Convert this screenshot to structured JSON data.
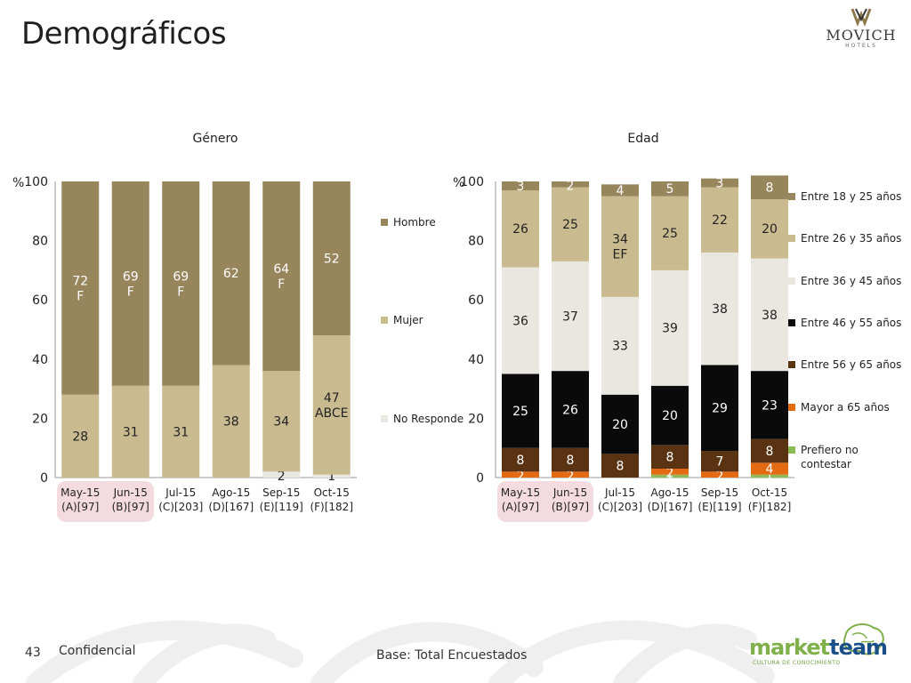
{
  "slide": {
    "title": "Demográficos",
    "page_number": "43",
    "confidential": "Confidencial",
    "base_note": "Base: Total Encuestados",
    "logo_top": {
      "name": "MOVICH",
      "sub": "HOTELS"
    },
    "logo_bottom": {
      "word_a": "market",
      "word_b": "team",
      "tagline": "CULTURA DE CONOCIMIENTO"
    }
  },
  "colors": {
    "hombre": "#97855c",
    "mujer": "#c9bb8f",
    "no_responde": "#eae7e1",
    "entre_18_25": "#97855c",
    "entre_26_35": "#c9bb8f",
    "entre_36_45": "#eae7e1",
    "entre_46_55": "#0a0a0a",
    "entre_56_65": "#5a3412",
    "mayor_65": "#e56a14",
    "prefiero_no": "#8dbb55",
    "highlight": "#f3dbe0"
  },
  "chart_data": [
    {
      "type": "bar",
      "stacked": true,
      "title": "Género",
      "ylabel": "%",
      "ylim": [
        0,
        100
      ],
      "yticks": [
        0,
        20,
        40,
        60,
        80,
        100
      ],
      "legend_position": "right",
      "categories": [
        [
          "May-15",
          "(A)[97]"
        ],
        [
          "Jun-15",
          "(B)[97]"
        ],
        [
          "Jul-15",
          "(C)[203]"
        ],
        [
          "Ago-15",
          "(D)[167]"
        ],
        [
          "Sep-15",
          "(E)[119]"
        ],
        [
          "Oct-15",
          "(F)[182]"
        ]
      ],
      "highlighted_categories": [
        0,
        1
      ],
      "series": [
        {
          "name": "No Responde",
          "color_key": "no_responde",
          "values": [
            0,
            0,
            0,
            0,
            2,
            1
          ],
          "labels": [
            "",
            "",
            "",
            "",
            "2",
            "1"
          ]
        },
        {
          "name": "Mujer",
          "color_key": "mujer",
          "values": [
            28,
            31,
            31,
            38,
            34,
            47
          ],
          "labels": [
            "28",
            "31",
            "31",
            "38",
            "34",
            "47\nABCE"
          ]
        },
        {
          "name": "Hombre",
          "color_key": "hombre",
          "values": [
            72,
            69,
            69,
            62,
            64,
            52
          ],
          "labels": [
            "72\nF",
            "69\nF",
            "69\nF",
            "62",
            "64\nF",
            "52"
          ]
        }
      ]
    },
    {
      "type": "bar",
      "stacked": true,
      "title": "Edad",
      "ylabel": "%",
      "ylim": [
        0,
        100
      ],
      "yticks": [
        0,
        20,
        40,
        60,
        80,
        100
      ],
      "legend_position": "right",
      "categories": [
        [
          "May-15",
          "(A)[97]"
        ],
        [
          "Jun-15",
          "(B)[97]"
        ],
        [
          "Jul-15",
          "(C)[203]"
        ],
        [
          "Ago-15",
          "(D)[167]"
        ],
        [
          "Sep-15",
          "(E)[119]"
        ],
        [
          "Oct-15",
          "(F)[182]"
        ]
      ],
      "highlighted_categories": [
        0,
        1
      ],
      "series": [
        {
          "name": "Prefiero no contestar",
          "color_key": "prefiero_no",
          "values": [
            0,
            0,
            0,
            1,
            0,
            1
          ],
          "labels": [
            "",
            "",
            "",
            "1",
            "",
            "1"
          ]
        },
        {
          "name": "Mayor a 65 años",
          "color_key": "mayor_65",
          "values": [
            2,
            2,
            0,
            2,
            2,
            4
          ],
          "labels": [
            "2",
            "2",
            "",
            "2",
            "2",
            "4"
          ]
        },
        {
          "name": "Entre 56 y 65 años",
          "color_key": "entre_56_65",
          "values": [
            8,
            8,
            8,
            8,
            7,
            8
          ],
          "labels": [
            "8",
            "8",
            "8",
            "8",
            "7",
            "8"
          ]
        },
        {
          "name": "Entre 46 y 55 años",
          "color_key": "entre_46_55",
          "values": [
            25,
            26,
            20,
            20,
            29,
            23
          ],
          "labels": [
            "25",
            "26",
            "20",
            "20",
            "29",
            "23"
          ]
        },
        {
          "name": "Entre 36 y 45 años",
          "color_key": "entre_36_45",
          "values": [
            36,
            37,
            33,
            39,
            38,
            38
          ],
          "labels": [
            "36",
            "37",
            "33",
            "39",
            "38",
            "38"
          ]
        },
        {
          "name": "Entre 26 y 35 años",
          "color_key": "entre_26_35",
          "values": [
            26,
            25,
            34,
            25,
            22,
            20
          ],
          "labels": [
            "26",
            "25",
            "34\nEF",
            "25",
            "22",
            "20"
          ]
        },
        {
          "name": "Entre 18 y 25 años",
          "color_key": "entre_18_25",
          "values": [
            3,
            2,
            4,
            5,
            3,
            8
          ],
          "labels": [
            "3",
            "2",
            "4",
            "5",
            "3",
            "8"
          ]
        }
      ]
    }
  ]
}
